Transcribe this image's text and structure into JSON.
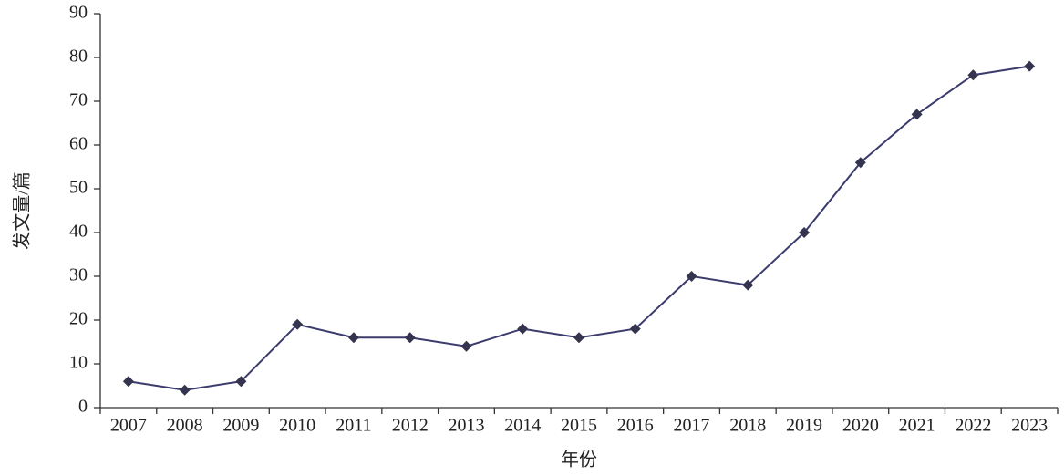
{
  "chart_data": {
    "type": "line",
    "x_label": "年份",
    "y_label": "发文量/篇",
    "categories": [
      "2007",
      "2008",
      "2009",
      "2010",
      "2011",
      "2012",
      "2013",
      "2014",
      "2015",
      "2016",
      "2017",
      "2018",
      "2019",
      "2020",
      "2021",
      "2022",
      "2023"
    ],
    "values": [
      6,
      4,
      6,
      19,
      16,
      16,
      14,
      18,
      16,
      18,
      30,
      28,
      40,
      56,
      67,
      76,
      78
    ],
    "color": "#3b3b6e",
    "marker_color": "#34344f",
    "ylim": [
      0,
      90
    ],
    "yticks": [
      0,
      10,
      20,
      30,
      40,
      50,
      60,
      70,
      80,
      90
    ],
    "grid": false
  }
}
